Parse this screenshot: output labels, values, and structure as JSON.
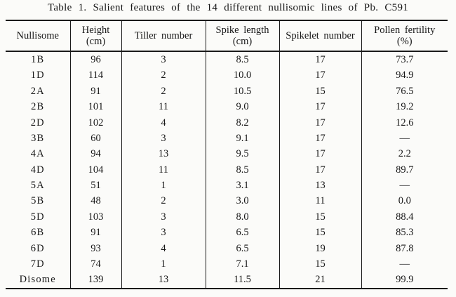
{
  "title": "Table 1. Salient features of the 14 different nullisomic lines of Pb. C591",
  "table": {
    "columns": [
      {
        "label": "Nullisome"
      },
      {
        "label": "Height",
        "sublabel": "(cm)"
      },
      {
        "label": "Tiller number"
      },
      {
        "label": "Spike length",
        "sublabel": "(cm)"
      },
      {
        "label": "Spikelet number"
      },
      {
        "label": "Pollen fertility",
        "sublabel": "(%)"
      }
    ],
    "rows": [
      [
        "1B",
        "96",
        "3",
        "8.5",
        "17",
        "73.7"
      ],
      [
        "1D",
        "114",
        "2",
        "10.0",
        "17",
        "94.9"
      ],
      [
        "2A",
        "91",
        "2",
        "10.5",
        "15",
        "76.5"
      ],
      [
        "2B",
        "101",
        "11",
        "9.0",
        "17",
        "19.2"
      ],
      [
        "2D",
        "102",
        "4",
        "8.2",
        "17",
        "12.6"
      ],
      [
        "3B",
        "60",
        "3",
        "9.1",
        "17",
        "—"
      ],
      [
        "4A",
        "94",
        "13",
        "9.5",
        "17",
        "2.2"
      ],
      [
        "4D",
        "104",
        "11",
        "8.5",
        "17",
        "89.7"
      ],
      [
        "5A",
        "51",
        "1",
        "3.1",
        "13",
        "—"
      ],
      [
        "5B",
        "48",
        "2",
        "3.0",
        "11",
        "0.0"
      ],
      [
        "5D",
        "103",
        "3",
        "8.0",
        "15",
        "88.4"
      ],
      [
        "6B",
        "91",
        "3",
        "6.5",
        "15",
        "85.3"
      ],
      [
        "6D",
        "93",
        "4",
        "6.5",
        "19",
        "87.8"
      ],
      [
        "7D",
        "74",
        "1",
        "7.1",
        "15",
        "—"
      ],
      [
        "Disome",
        "139",
        "13",
        "11.5",
        "21",
        "99.9"
      ]
    ],
    "missing_value_symbol": "—"
  },
  "colors": {
    "ink": "#1a1a1a",
    "paper": "#fbfbf9"
  }
}
